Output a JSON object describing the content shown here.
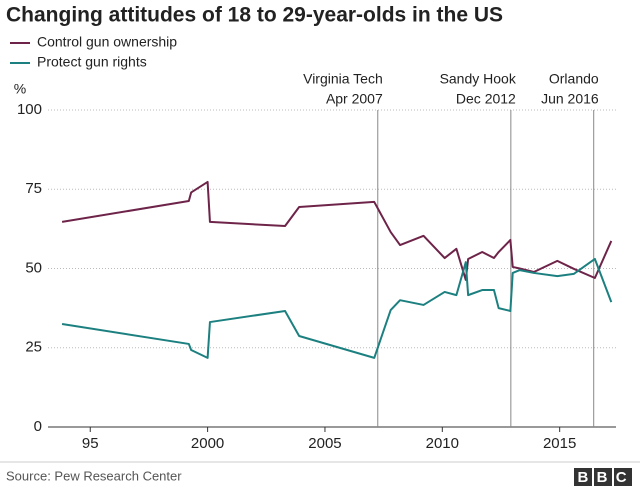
{
  "chart_data": {
    "type": "line",
    "title": "Changing attitudes of 18 to 29-year-olds in the US",
    "y_label": "%",
    "x": [
      1993.8,
      1999.2,
      1999.3,
      2000.0,
      2000.1,
      2003.3,
      2003.9,
      2007.1,
      2007.8,
      2008.2,
      2009.2,
      2010.1,
      2010.6,
      2011.0,
      2011.1,
      2011.7,
      2012.2,
      2012.4,
      2012.9,
      2013.0,
      2013.3,
      2013.9,
      2014.9,
      2015.6,
      2016.5,
      2017.2
    ],
    "series": [
      {
        "name": "Control gun ownership",
        "color": "#6e2449",
        "values": [
          64.7,
          71.3,
          74,
          77.3,
          64.7,
          63.4,
          69.4,
          71,
          61.5,
          57.4,
          60.3,
          53.3,
          56.2,
          46.4,
          53,
          55.2,
          53.3,
          55.2,
          59,
          50.5,
          50,
          48.9,
          52.4,
          49.9,
          47,
          58.7
        ]
      },
      {
        "name": "Protect gun rights",
        "color": "#1d8080",
        "values": [
          32.5,
          26.2,
          24.3,
          21.8,
          33.1,
          36.6,
          28.7,
          21.8,
          36.9,
          40,
          38.5,
          42.6,
          41.6,
          52,
          41.6,
          43.2,
          43.2,
          37.5,
          36.6,
          48.6,
          49.5,
          48.6,
          47.6,
          48.3,
          53,
          39.4
        ]
      }
    ],
    "xlim": [
      1993.2,
      2017.4
    ],
    "xticks": [
      {
        "value": 1995,
        "label": "95"
      },
      2000,
      2005,
      2010,
      2015
    ],
    "ylim": [
      0,
      100
    ],
    "yticks": [
      0,
      25,
      50,
      75,
      100
    ],
    "grid": true,
    "annotations": [
      {
        "label": "Virginia Tech",
        "date": "Apr 2007",
        "x": 2007.25
      },
      {
        "label": "Sandy Hook",
        "date": "Dec 2012",
        "x": 2012.92
      },
      {
        "label": "Orlando",
        "date": "Jun 2016",
        "x": 2016.45
      }
    ],
    "source": "Source: Pew Research Center",
    "logo": "BBC"
  }
}
